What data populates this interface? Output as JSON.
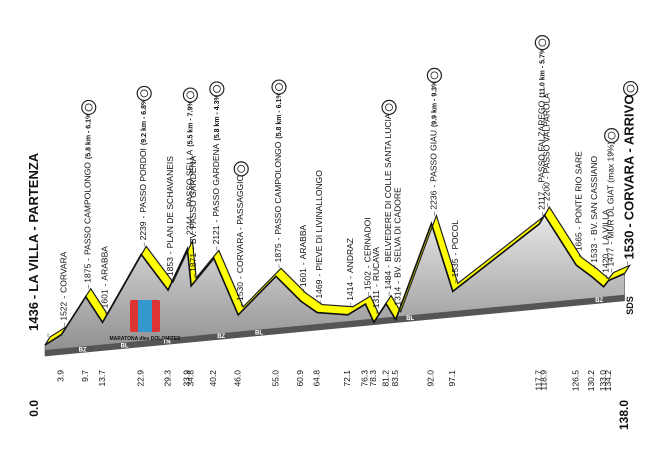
{
  "chart_data": {
    "type": "profile",
    "separator": "-",
    "logo": "MARATONA dles DOLOMITES",
    "finish_mark": "SDS",
    "line_color": "#ffff00",
    "points": [
      {
        "km": 0.0,
        "altitude": 1436,
        "name": "LA VILLA - PARTENZA"
      },
      {
        "km": 3.9,
        "altitude": 1522,
        "name": "CORVARA"
      },
      {
        "km": 9.7,
        "altitude": 1875,
        "name": "PASSO CAMPOLONGO",
        "detail": "(5.8 km - 6.1%)",
        "climb": true
      },
      {
        "km": 13.7,
        "altitude": 1601,
        "name": "ARABBA"
      },
      {
        "km": 22.9,
        "altitude": 2239,
        "name": "PASSO PORDOI",
        "detail": "(9.2 km - 6.8%)",
        "climb": true
      },
      {
        "km": 29.3,
        "altitude": 1853,
        "name": "PLAN DE SCHAVANEIS"
      },
      {
        "km": 33.9,
        "altitude": 2244,
        "name": "PASSO SELLA",
        "detail": "(5.5 km - 7.9%)",
        "climb": true
      },
      {
        "km": 34.8,
        "altitude": 1871,
        "name": "BV. PASSO GARDENA"
      },
      {
        "km": 40.2,
        "altitude": 2121,
        "name": "PASSO GARDENA",
        "detail": "(5.8 km - 4.3%)",
        "climb": true
      },
      {
        "km": 46.0,
        "altitude": 1530,
        "name": "CORVARA - PASSAGGIO",
        "climb": true
      },
      {
        "km": 55.0,
        "altitude": 1875,
        "name": "PASSO CAMPOLONGO",
        "detail": "(5.8 km - 6.1%)",
        "climb": true
      },
      {
        "km": 60.9,
        "altitude": 1601,
        "name": "ARABBA"
      },
      {
        "km": 64.8,
        "altitude": 1469,
        "name": "PIEVE DI LIVINALLONGO"
      },
      {
        "km": 72.1,
        "altitude": 1414,
        "name": "ANDRAZ"
      },
      {
        "km": 76.3,
        "altitude": 1502,
        "name": "CERNADOI"
      },
      {
        "km": 78.3,
        "altitude": 1311,
        "name": "RUCAVA"
      },
      {
        "km": 81.2,
        "altitude": 1484,
        "name": "BELVEDERE DI COLLE SANTA LUCIA",
        "climb": true
      },
      {
        "km": 83.5,
        "altitude": 1314,
        "name": "BV. SELVA DI CADORE"
      },
      {
        "km": 92.0,
        "altitude": 2236,
        "name": "PASSO GIAU",
        "detail": "(9.9 km - 9.3%)",
        "climb": true
      },
      {
        "km": 97.1,
        "altitude": 1535,
        "name": "POCOL"
      },
      {
        "km": 117.7,
        "altitude": 2117,
        "name": "PASSO FALZAREGO",
        "detail": "(11.0 km - 5.7%)",
        "climb": true
      },
      {
        "km": 118.9,
        "altitude": 2200,
        "name": "PASSO VALPAROLA"
      },
      {
        "km": 126.5,
        "altitude": 1665,
        "name": "PONTE RIO SARE"
      },
      {
        "km": 130.2,
        "altitude": 1533,
        "name": "BV. SAN CASSIANO"
      },
      {
        "km": 133.0,
        "altitude": 1420,
        "name": "LA VILLA"
      },
      {
        "km": 134.2,
        "altitude": 1477,
        "name": "MUR DL GIAT (max 19%)",
        "climb": true
      },
      {
        "km": 138.0,
        "altitude": 1530,
        "name": "CORVARA - ARRIVO",
        "climb": true
      }
    ],
    "regions": [
      {
        "label": "BZ",
        "km": 8
      },
      {
        "label": "BL",
        "km": 18
      },
      {
        "label": "TN",
        "km": 28
      },
      {
        "label": "BL",
        "km": 50
      },
      {
        "label": "BZ",
        "km": 41
      },
      {
        "label": "BL",
        "km": 86
      },
      {
        "label": "BZ",
        "km": 131
      }
    ]
  }
}
